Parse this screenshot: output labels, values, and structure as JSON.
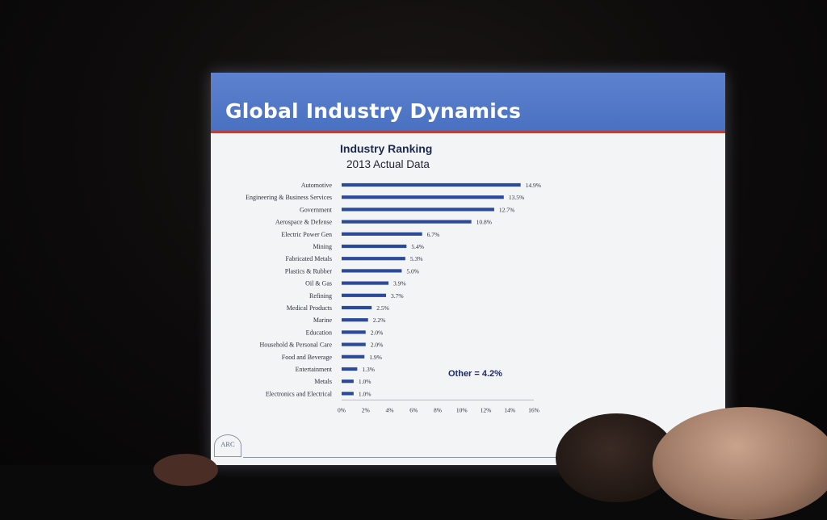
{
  "slide": {
    "title": "Global Industry Dynamics",
    "logo_text": "ARC"
  },
  "colors": {
    "header_blue": "#4a70c1",
    "header_rule_red": "#b5413c",
    "bar_blue": "#2b4a9a",
    "slide_bg": "#f3f4f6"
  },
  "chart_data": {
    "type": "bar",
    "orientation": "horizontal",
    "title": "Industry Ranking",
    "subtitle": "2013 Actual Data",
    "categories": [
      "Automotive",
      "Engineering & Business Services",
      "Government",
      "Aerospace & Defense",
      "Electric Power Gen",
      "Mining",
      "Fabricated Metals",
      "Plastics & Rubber",
      "Oil & Gas",
      "Refining",
      "Medical Products",
      "Marine",
      "Education",
      "Household & Personal Care",
      "Food and Beverage",
      "Entertainment",
      "Metals",
      "Electronics and Electrical"
    ],
    "values": [
      14.9,
      13.5,
      12.7,
      10.8,
      6.7,
      5.4,
      5.3,
      5.0,
      3.9,
      3.7,
      2.5,
      2.2,
      2.0,
      2.0,
      1.9,
      1.3,
      1.0,
      1.0
    ],
    "value_labels": [
      "14.9%",
      "13.5%",
      "12.7%",
      "10.8%",
      "6.7%",
      "5.4%",
      "5.3%",
      "5.0%",
      "3.9%",
      "3.7%",
      "2.5%",
      "2.2%",
      "2.0%",
      "2.0%",
      "1.9%",
      "1.3%",
      "1.0%",
      "1.0%"
    ],
    "xlim": [
      0,
      16
    ],
    "x_ticks": [
      "0%",
      "2%",
      "4%",
      "6%",
      "8%",
      "10%",
      "12%",
      "14%",
      "16%"
    ],
    "grid": false,
    "annotation": "Other = 4.2%"
  }
}
